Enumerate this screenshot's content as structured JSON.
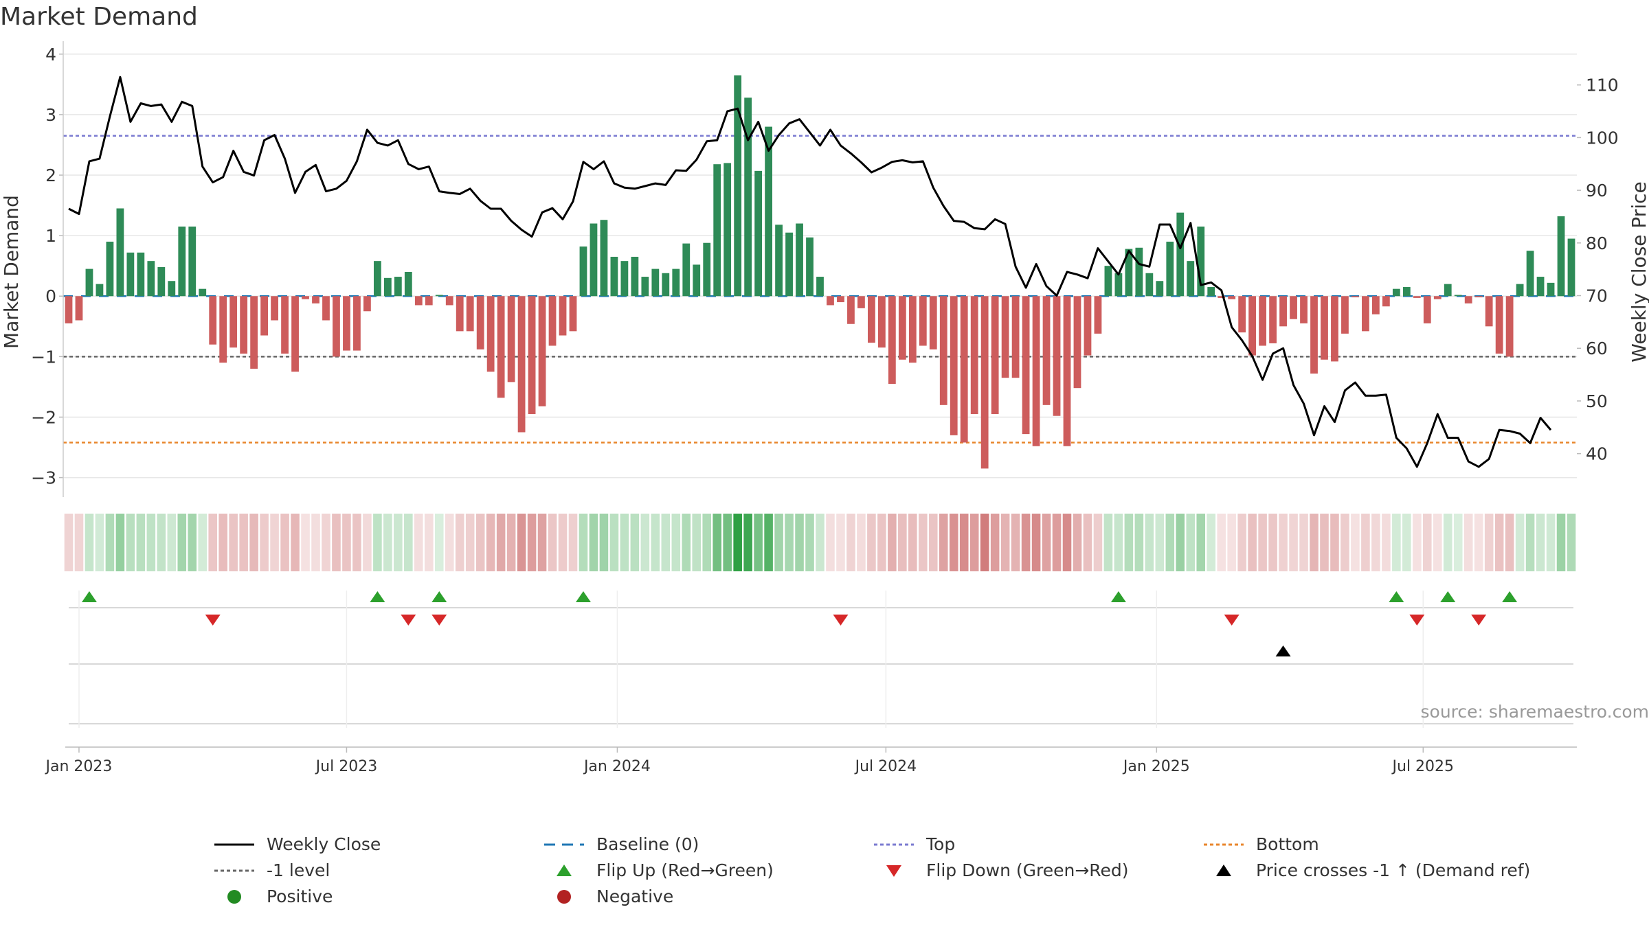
{
  "chart_data": {
    "type": "bar+line",
    "title": "Market Demand",
    "ylabel_left": "Market Demand",
    "ylabel_right": "Weekly Close Price",
    "ylim_left": [
      -3.3,
      4.1
    ],
    "ylim_right": [
      32,
      117
    ],
    "yticks_left": [
      4,
      3,
      2,
      1,
      0,
      -1,
      -2,
      -3
    ],
    "yticks_left_labels": [
      "4",
      "3",
      "2",
      "1",
      "0",
      "−1",
      "−2",
      "−3"
    ],
    "yticks_right": [
      110,
      100,
      90,
      80,
      70,
      60,
      50,
      40
    ],
    "x_start": "2022-12-26",
    "x_end": "2025-10-06",
    "xticks": [
      {
        "label": "Jan 2023",
        "week": 1.0
      },
      {
        "label": "Jul 2023",
        "week": 27.0
      },
      {
        "label": "Jan 2024",
        "week": 53.3
      },
      {
        "label": "Jul 2024",
        "week": 79.4
      },
      {
        "label": "Jan 2025",
        "week": 105.7
      },
      {
        "label": "Jul 2025",
        "week": 131.6
      }
    ],
    "reference_lines": {
      "top": 2.65,
      "minus_one": -1.0,
      "bottom": -2.42,
      "baseline": 0
    },
    "demand": [
      -0.45,
      -0.4,
      0.45,
      0.2,
      0.9,
      1.45,
      0.72,
      0.72,
      0.58,
      0.48,
      0.25,
      1.15,
      1.15,
      0.12,
      -0.8,
      -1.1,
      -0.85,
      -0.95,
      -1.2,
      -0.65,
      -0.4,
      -0.95,
      -1.25,
      -0.05,
      -0.12,
      -0.4,
      -1.0,
      -0.9,
      -0.9,
      -0.25,
      0.58,
      0.3,
      0.32,
      0.4,
      -0.15,
      -0.15,
      0.02,
      -0.15,
      -0.58,
      -0.58,
      -0.88,
      -1.25,
      -1.68,
      -1.42,
      -2.25,
      -1.95,
      -1.82,
      -0.82,
      -0.65,
      -0.58,
      0.82,
      1.2,
      1.26,
      0.65,
      0.58,
      0.65,
      0.32,
      0.45,
      0.38,
      0.45,
      0.87,
      0.52,
      0.88,
      2.18,
      2.2,
      3.65,
      3.28,
      2.07,
      2.8,
      1.18,
      1.05,
      1.2,
      0.97,
      0.32,
      -0.15,
      -0.1,
      -0.46,
      -0.2,
      -0.77,
      -0.85,
      -1.45,
      -1.05,
      -1.1,
      -0.82,
      -0.88,
      -1.8,
      -2.3,
      -2.42,
      -1.95,
      -2.85,
      -1.95,
      -1.35,
      -1.35,
      -2.28,
      -2.48,
      -1.8,
      -1.98,
      -2.48,
      -1.52,
      -0.98,
      -0.62,
      0.5,
      0.38,
      0.78,
      0.8,
      0.38,
      0.25,
      0.9,
      1.38,
      0.58,
      1.15,
      0.15,
      -0.03,
      -0.05,
      -0.6,
      -0.98,
      -0.82,
      -0.78,
      -0.5,
      -0.38,
      -0.45,
      -1.28,
      -1.05,
      -1.08,
      -0.62,
      -0.02,
      -0.58,
      -0.3,
      -0.17,
      0.12,
      0.15,
      -0.03,
      -0.45,
      -0.05,
      0.2,
      0.02,
      -0.12,
      -0.02,
      -0.5,
      -0.95,
      -1.0,
      0.2,
      0.75,
      0.32,
      0.22,
      1.32,
      0.95
    ],
    "price": [
      86.5,
      85.5,
      95.5,
      96,
      104,
      111.5,
      103,
      106.5,
      106,
      106.3,
      103,
      106.8,
      106,
      94.5,
      91.5,
      92.5,
      97.5,
      93.5,
      92.8,
      99.5,
      100.5,
      96,
      89.5,
      93.5,
      94.8,
      89.8,
      90.3,
      91.8,
      95.5,
      101.5,
      99,
      98.5,
      99.5,
      95,
      94,
      94.5,
      89.8,
      89.5,
      89.3,
      90.3,
      88,
      86.5,
      86.5,
      84.2,
      82.5,
      81.2,
      85.8,
      86.6,
      84.5,
      87.9,
      95.4,
      94,
      95.5,
      91.3,
      90.5,
      90.3,
      90.8,
      91.3,
      91,
      93.8,
      93.7,
      95.8,
      99.3,
      99.5,
      105,
      105.5,
      99.5,
      103,
      97.5,
      100.5,
      102.7,
      103.5,
      101,
      98.5,
      101.5,
      98.5,
      97,
      95.3,
      93.4,
      94.3,
      95.4,
      95.7,
      95.3,
      95.5,
      90.5,
      87,
      84.2,
      84,
      82.8,
      82.6,
      84.5,
      83.6,
      75.5,
      71.5,
      76,
      71.8,
      70,
      74.5,
      74,
      73.3,
      79,
      76.5,
      74,
      78.5,
      76,
      75.5,
      83.5,
      83.5,
      79,
      83.8,
      72,
      72.5,
      71,
      64,
      61.5,
      58.5,
      54,
      59,
      60,
      53,
      49.5,
      43.5,
      49,
      46,
      52,
      53.5,
      51,
      51,
      51.2,
      43,
      41,
      37.5,
      42,
      47.5,
      43,
      43,
      38.5,
      37.5,
      39,
      44.5,
      44.3,
      43.8,
      42,
      46.8,
      44.5
    ],
    "heat_strip": "weekly demand shading (green positive, red negative)",
    "events": {
      "flip_up_weeks": [
        2,
        30,
        36,
        50,
        102,
        129,
        134,
        140
      ],
      "flip_down_weeks": [
        14,
        33,
        36,
        75,
        113,
        131,
        137
      ],
      "price_cross_weeks": [
        118
      ]
    },
    "legend": [
      "Weekly Close",
      "Baseline (0)",
      "Top",
      "Bottom",
      "-1 level",
      "Flip Up (Red→Green)",
      "Flip Down (Green→Red)",
      "Price crosses -1 ↑ (Demand ref)",
      "Positive",
      "Negative"
    ],
    "legend_placement": "bottom",
    "source": "source: sharemaestro.com"
  },
  "colors": {
    "positive": "#2e8b57",
    "negative": "#cd5c5c",
    "price": "#000000",
    "baseline": "#1f77b4",
    "top": "#7b7bd1",
    "minus_one": "#666666",
    "bottom": "#e8862c",
    "flip_up": "#2ca02c",
    "flip_down": "#d62728",
    "cross": "#000000",
    "positive_dot": "#228b22",
    "negative_dot": "#b22222",
    "grid": "#e6e6e6"
  }
}
